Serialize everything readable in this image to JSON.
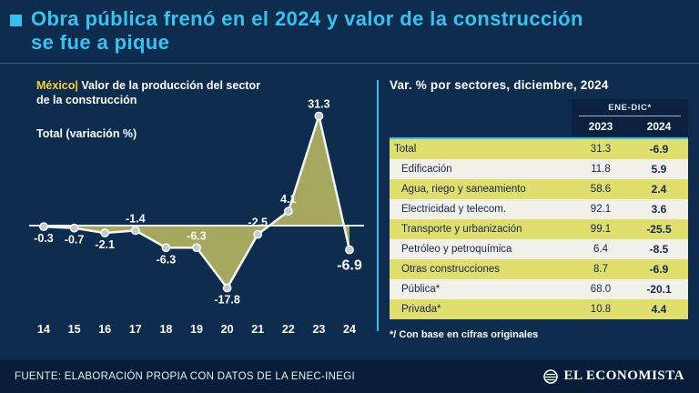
{
  "header": {
    "title_lines": [
      "Obra pública frenó en el 2024 y valor de la construcción",
      "se fue a pique"
    ]
  },
  "chart_data": [
    {
      "type": "area",
      "region_label": "México|",
      "title": "Valor de la producción del sector de la construcción",
      "series_label": "Total (variación %)",
      "x": [
        14,
        15,
        16,
        17,
        18,
        19,
        20,
        21,
        22,
        23,
        24
      ],
      "values": [
        -0.3,
        -0.7,
        -2.1,
        -1.4,
        -6.3,
        -6.3,
        -17.8,
        -2.5,
        4.1,
        31.3,
        -6.9
      ],
      "label_positions": [
        "below",
        "below",
        "below",
        "above",
        "below",
        "above",
        "below",
        "above",
        "above",
        "above",
        "below"
      ],
      "ylim": [
        -22,
        35
      ],
      "zero_line": true,
      "fill_color": "#a6a85f",
      "line_color": "#f2f4f5"
    },
    {
      "type": "table",
      "title": "Var. % por sectores, diciembre, 2024",
      "col_group": "ENE-DIC*",
      "columns": [
        "2023",
        "2024"
      ],
      "rows": [
        {
          "name": "Total",
          "v2023": "31.3",
          "v2024": "-6.9"
        },
        {
          "name": "Edificación",
          "v2023": "11.8",
          "v2024": "5.9"
        },
        {
          "name": "Agua, riego y saneamiento",
          "v2023": "58.6",
          "v2024": "2.4"
        },
        {
          "name": "Electricidad y telecom.",
          "v2023": "92.1",
          "v2024": "3.6"
        },
        {
          "name": "Transporte y urbanización",
          "v2023": "99.1",
          "v2024": "-25.5"
        },
        {
          "name": "Petróleo y petroquímica",
          "v2023": "6.4",
          "v2024": "-8.5"
        },
        {
          "name": "Otras construcciones",
          "v2023": "8.7",
          "v2024": "-6.9"
        },
        {
          "name": "Pública*",
          "v2023": "68.0",
          "v2024": "-20.1"
        },
        {
          "name": "Privada*",
          "v2023": "10.8",
          "v2024": "4.4"
        }
      ],
      "footnote": "*/ Con base en cifras originales",
      "highlight_color": "#e0de6d"
    }
  ],
  "footer": {
    "source": "FUENTE: ELABORACIÓN PROPIA CON DATOS DE LA ENEC-INEGI",
    "brand": "EL ECONOMISTA"
  },
  "colors": {
    "background": "#0e2c4e",
    "accent_cyan": "#36bfee",
    "label_yellow": "#f5d33a",
    "area_olive": "#a6a85f",
    "row_yellow": "#e0de6d",
    "row_light": "#f2f1e9",
    "footer_bg": "#081e38"
  }
}
